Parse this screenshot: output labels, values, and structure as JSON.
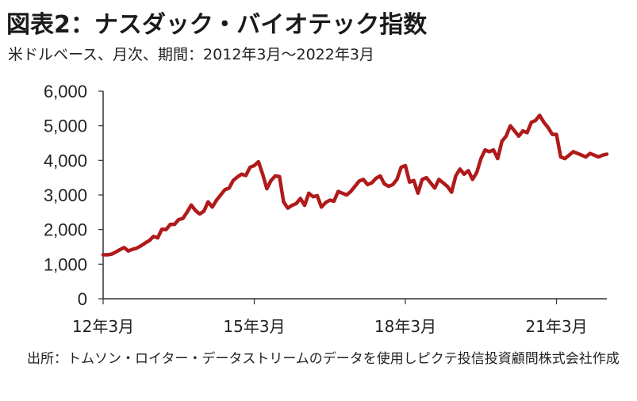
{
  "header": {
    "title": "図表2：ナスダック・バイオテック指数",
    "subtitle": "米ドルベース、月次、期間：2012年3月～2022年3月"
  },
  "footer": {
    "source": "出所：トムソン・ロイター・データストリームのデータを使用しピクテ投信投資顧問株式会社作成"
  },
  "colors": {
    "line": "#b01a1a",
    "axis": "#333333"
  },
  "chart_data": {
    "type": "line",
    "ylim": [
      0,
      6000
    ],
    "y_ticks": [
      0,
      1000,
      2000,
      3000,
      4000,
      5000,
      6000
    ],
    "y_tick_labels": [
      "0",
      "1,000",
      "2,000",
      "3,000",
      "4,000",
      "5,000",
      "6,000"
    ],
    "x_tick_labels": [
      "12年3月",
      "15年3月",
      "18年3月",
      "21年3月"
    ],
    "x_tick_dates": [
      "2012-03",
      "2015-03",
      "2018-03",
      "2021-03"
    ],
    "x_range": [
      "2012-03",
      "2022-03"
    ],
    "grid": false,
    "series": [
      {
        "x": [
          "2012-03",
          "2012-04",
          "2012-05",
          "2012-06",
          "2012-07",
          "2012-08",
          "2012-09",
          "2012-10",
          "2012-11",
          "2012-12",
          "2013-01",
          "2013-02",
          "2013-03",
          "2013-04",
          "2013-05",
          "2013-06",
          "2013-07",
          "2013-08",
          "2013-09",
          "2013-10",
          "2013-11",
          "2013-12",
          "2014-01",
          "2014-02",
          "2014-03",
          "2014-04",
          "2014-05",
          "2014-06",
          "2014-07",
          "2014-08",
          "2014-09",
          "2014-10",
          "2014-11",
          "2014-12",
          "2015-01",
          "2015-02",
          "2015-03",
          "2015-04",
          "2015-05",
          "2015-06",
          "2015-07",
          "2015-08",
          "2015-09",
          "2015-10",
          "2015-11",
          "2015-12",
          "2016-01",
          "2016-02",
          "2016-03",
          "2016-04",
          "2016-05",
          "2016-06",
          "2016-07",
          "2016-08",
          "2016-09",
          "2016-10",
          "2016-11",
          "2016-12",
          "2017-01",
          "2017-02",
          "2017-03",
          "2017-04",
          "2017-05",
          "2017-06",
          "2017-07",
          "2017-08",
          "2017-09",
          "2017-10",
          "2017-11",
          "2017-12",
          "2018-01",
          "2018-02",
          "2018-03",
          "2018-04",
          "2018-05",
          "2018-06",
          "2018-07",
          "2018-08",
          "2018-09",
          "2018-10",
          "2018-11",
          "2018-12",
          "2019-01",
          "2019-02",
          "2019-03",
          "2019-04",
          "2019-05",
          "2019-06",
          "2019-07",
          "2019-08",
          "2019-09",
          "2019-10",
          "2019-11",
          "2019-12",
          "2020-01",
          "2020-02",
          "2020-03",
          "2020-04",
          "2020-05",
          "2020-06",
          "2020-07",
          "2020-08",
          "2020-09",
          "2020-10",
          "2020-11",
          "2020-12",
          "2021-01",
          "2021-02",
          "2021-03",
          "2021-04",
          "2021-05",
          "2021-06",
          "2021-07",
          "2021-08",
          "2021-09",
          "2021-10",
          "2021-11",
          "2021-12",
          "2022-01",
          "2022-02",
          "2022-03"
        ],
        "y": [
          1270,
          1270,
          1290,
          1350,
          1420,
          1480,
          1380,
          1430,
          1460,
          1530,
          1610,
          1680,
          1800,
          1760,
          2010,
          2000,
          2150,
          2150,
          2290,
          2320,
          2500,
          2710,
          2550,
          2450,
          2530,
          2800,
          2650,
          2850,
          3000,
          3150,
          3200,
          3420,
          3520,
          3600,
          3560,
          3800,
          3850,
          3960,
          3600,
          3180,
          3420,
          3550,
          3530,
          2800,
          2620,
          2700,
          2750,
          2900,
          2700,
          3050,
          2950,
          2980,
          2650,
          2780,
          2850,
          2820,
          3100,
          3050,
          3000,
          3100,
          3250,
          3400,
          3450,
          3300,
          3350,
          3480,
          3550,
          3320,
          3250,
          3300,
          3450,
          3800,
          3850,
          3370,
          3420,
          3050,
          3450,
          3500,
          3350,
          3200,
          3450,
          3350,
          3250,
          3080,
          3550,
          3750,
          3600,
          3700,
          3450,
          3650,
          4050,
          4300,
          4250,
          4300,
          4050,
          4550,
          4700,
          5000,
          4850,
          4700,
          4850,
          4800,
          5100,
          5150,
          5300,
          5100,
          4950,
          4750,
          4750,
          4100,
          4050,
          4150,
          4250,
          4200,
          4150,
          4100,
          4200,
          4150,
          4100,
          4150,
          4180
        ]
      }
    ]
  }
}
